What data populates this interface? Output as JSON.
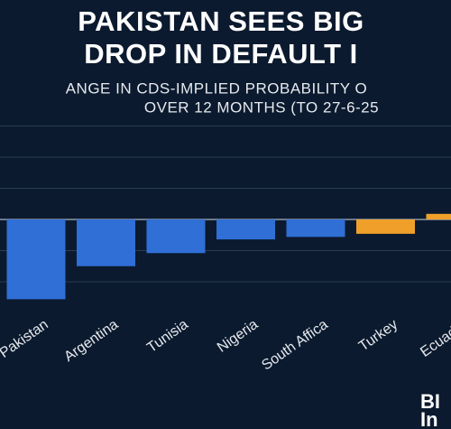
{
  "chart_data": {
    "type": "bar",
    "title": [
      "PAKISTAN SEES BIG",
      "DROP IN DEFAULT I"
    ],
    "subtitle": [
      "ANGE IN CDS-IMPLIED PROBABILITY O",
      "OVER 12 MONTHS (TO 27-6-25"
    ],
    "categories": [
      "Pakistan",
      "Argentina",
      "Tunisia",
      "Nigeria",
      "South Affica",
      "Turkey",
      "Ecuador"
    ],
    "values": [
      -12.8,
      -7.5,
      -5.4,
      -3.2,
      -2.8,
      -2.3,
      0.9
    ],
    "colors": [
      "#2f6fd6",
      "#2f6fd6",
      "#2f6fd6",
      "#2f6fd6",
      "#2f6fd6",
      "#f0a02a",
      "#f0a02a"
    ],
    "ylim": [
      -14,
      16
    ],
    "yticks": [
      -10,
      -5,
      0,
      5,
      10,
      15
    ],
    "grid": true,
    "source_logo": [
      "BI",
      "In"
    ]
  }
}
